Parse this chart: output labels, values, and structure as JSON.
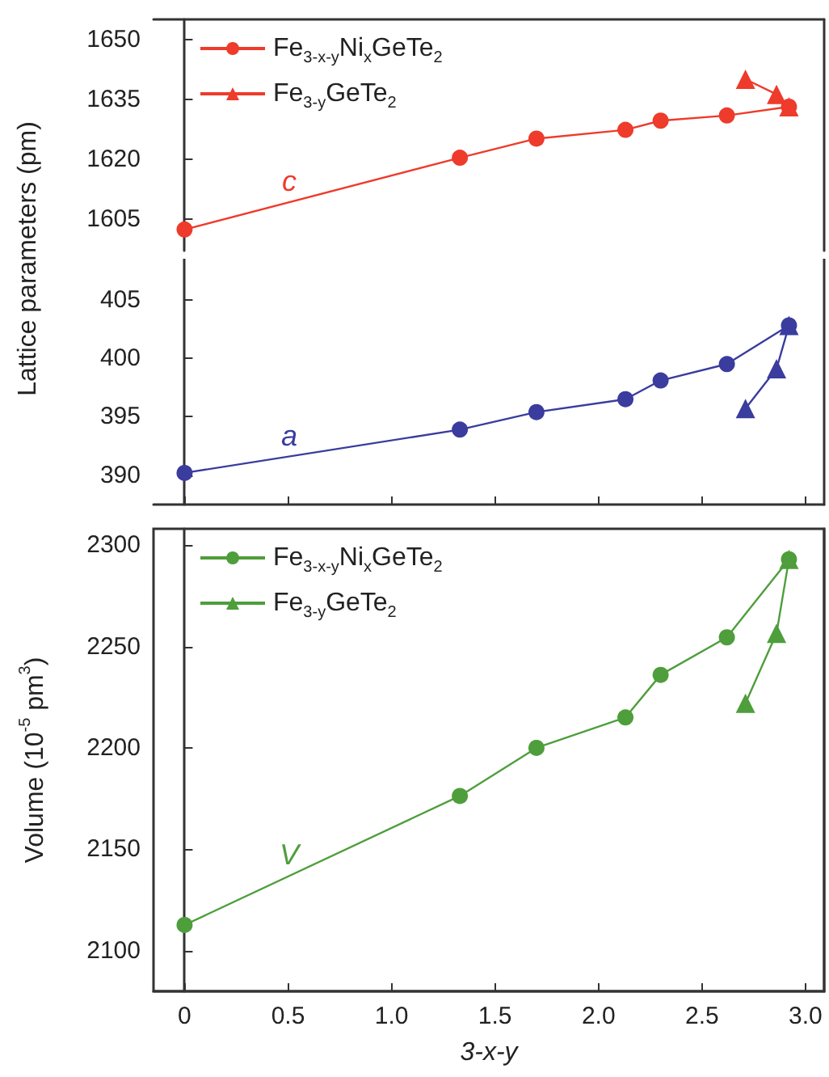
{
  "chart_data": [
    {
      "type": "line",
      "ylabel": "Lattice parameters (pm)",
      "x": [
        0,
        1.33,
        1.7,
        2.13,
        2.3,
        2.62,
        2.92
      ],
      "xlim": [
        -0.15,
        3.09
      ],
      "ylim": [
        1597,
        1655
      ],
      "yticks": [
        1605,
        1620,
        1635,
        1650
      ],
      "tick_labels": "y",
      "legend": "top left",
      "annotations": [
        "c"
      ],
      "series": [
        {
          "name": "Fe$_{3-x-y}$Ni$_{x}$GeTe$_{2}$",
          "color": "#ee3b2b",
          "marker": "circle",
          "values": [
            1602.3,
            1620.3,
            1625.1,
            1627.3,
            1629.6,
            1630.9,
            1633.1
          ]
        },
        {
          "name": "Fe$_{3-y}$GeTe$_{2}$",
          "color": "#ee3b2b",
          "marker": "triangle",
          "x": [
            2.71,
            2.86,
            2.92
          ],
          "values": [
            1640.0,
            1636.2,
            1633.1
          ]
        }
      ]
    },
    {
      "type": "line",
      "x": [
        0,
        1.33,
        1.7,
        2.13,
        2.3,
        2.62,
        2.92
      ],
      "xlim": [
        -0.15,
        3.09
      ],
      "xticks": [
        {
          "value": 0,
          "label": null
        },
        {
          "value": 0.5,
          "label": null
        },
        {
          "value": 1,
          "label": null
        },
        {
          "value": 1.5,
          "label": null
        },
        {
          "value": 2,
          "label": null
        },
        {
          "value": 2.5,
          "label": null
        },
        {
          "value": 3,
          "label": null
        }
      ],
      "ylim": [
        387.5,
        408.5
      ],
      "yticks": [
        390,
        395,
        400,
        405
      ],
      "tick_labels": "y",
      "annotations": [
        "a"
      ],
      "series": [
        {
          "color": "#3a3c9e",
          "marker": "circle",
          "values": [
            390.2,
            393.9,
            395.4,
            396.5,
            398.1,
            399.5,
            402.8
          ]
        },
        {
          "color": "#3a3c9e",
          "marker": "triangle",
          "x": [
            2.71,
            2.86,
            2.92
          ],
          "values": [
            395.7,
            399.1,
            402.8
          ]
        }
      ]
    },
    {
      "type": "line",
      "xlabel": "3-x-y",
      "ylabel": "Volume (10$^{-5}$ pm$^{3}$)",
      "x": [
        0,
        1.33,
        1.7,
        2.13,
        2.3,
        2.62,
        2.92
      ],
      "xlim": [
        -0.15,
        3.09
      ],
      "xticks": [
        0,
        {
          "value": 0.5,
          "label": "0.5"
        },
        {
          "value": 1,
          "label": "1.0"
        },
        {
          "value": 1.5,
          "label": "1.5"
        },
        {
          "value": 2,
          "label": "2.0"
        },
        {
          "value": 2.5,
          "label": "2.5"
        },
        {
          "value": 3,
          "label": "3.0"
        }
      ],
      "ylim": [
        2080,
        2308
      ],
      "yticks": [
        2100,
        2150,
        2200,
        2250,
        2300
      ],
      "legend": "top left",
      "annotations": [
        "V"
      ],
      "series": [
        {
          "name": "Fe$_{3-x-y}$Ni$_{x}$GeTe$_{2}$",
          "color": "#4e9e3c",
          "marker": "circle",
          "values": [
            2112.7,
            2176.3,
            2200,
            2215,
            2236,
            2254.5,
            2293
          ]
        },
        {
          "name": "Fe$_{3-y}$GeTe$_{2}$",
          "color": "#4e9e3c",
          "marker": "triangle",
          "x": [
            2.71,
            2.86,
            2.92
          ],
          "values": [
            2222,
            2256.5,
            2293
          ]
        }
      ]
    }
  ]
}
